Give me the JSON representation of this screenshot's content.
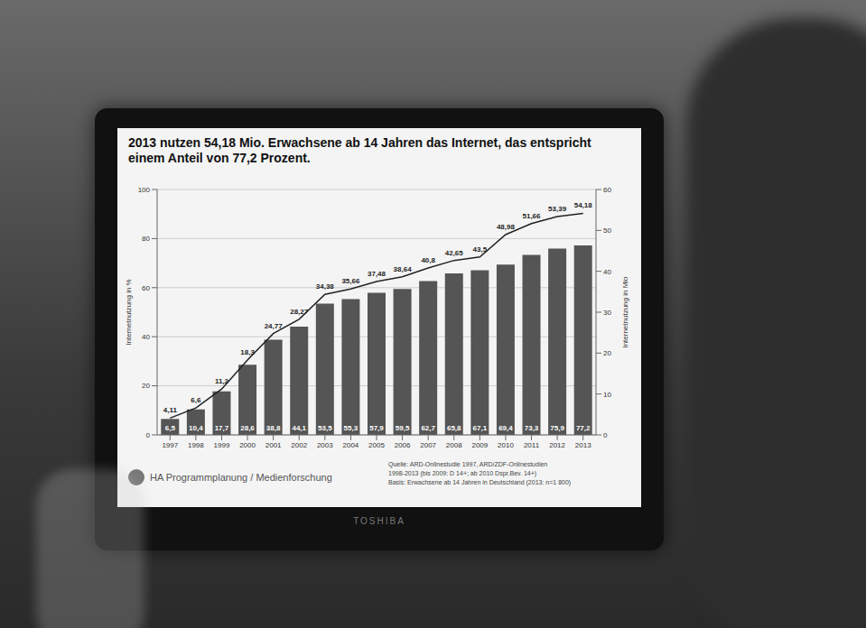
{
  "chart_data": {
    "type": "bar",
    "title": "2013 nutzen 54,18 Mio. Erwachsene ab 14 Jahren das Internet, das entspricht einem Anteil von 77,2 Prozent.",
    "categories": [
      "1997",
      "1998",
      "1999",
      "2000",
      "2001",
      "2002",
      "2003",
      "2004",
      "2005",
      "2006",
      "2007",
      "2008",
      "2009",
      "2010",
      "2011",
      "2012",
      "2013"
    ],
    "series": [
      {
        "type": "bar",
        "color": "#555555",
        "values": [
          6.5,
          10.4,
          17.7,
          28.6,
          38.8,
          44.1,
          53.5,
          55.3,
          57.9,
          59.5,
          62.7,
          65.8,
          67.1,
          69.4,
          73.3,
          75.9,
          77.2
        ],
        "value_labels": [
          "6,5",
          "10,4",
          "17,7",
          "28,6",
          "38,8",
          "44,1",
          "53,5",
          "55,3",
          "57,9",
          "59,5",
          "62,7",
          "65,8",
          "67,1",
          "69,4",
          "73,3",
          "75,9",
          "77,2"
        ]
      },
      {
        "type": "line",
        "axis": "y2",
        "color": "#222222",
        "values": [
          4.11,
          6.6,
          11.2,
          18.3,
          24.77,
          28.27,
          34.38,
          35.66,
          37.48,
          38.64,
          40.8,
          42.65,
          43.5,
          48.98,
          51.66,
          53.39,
          54.18
        ],
        "value_labels": [
          "4,11",
          "6,6",
          "11,2",
          "18,3",
          "24,77",
          "28,27",
          "34,38",
          "35,66",
          "37,48",
          "38,64",
          "40,8",
          "42,65",
          "43,5",
          "48,98",
          "51,66",
          "53,39",
          "54,18"
        ]
      }
    ],
    "y_label": "Internetnutzung in %",
    "y2_label": "Internetnutzung in Mio",
    "ylim": [
      0,
      100
    ],
    "yticks": [
      0,
      20,
      40,
      60,
      80,
      100
    ],
    "y2lim": [
      0,
      60
    ],
    "y2ticks": [
      0,
      10,
      20,
      30,
      40,
      50,
      60
    ],
    "grid": true,
    "data_labels": true,
    "annotations": [
      "HA Programmplanung / Medienforschung",
      "Quelle: ARD-Onlinestudie 1997, ARD/ZDF-Onlinestudien",
      "1998-2013 (bis 2009: D 14+; ab 2010 Dspr.Bev. 14+)",
      "Basis: Erwachsene ab 14 Jahren in Deutschland (2013: n=1 800)"
    ]
  },
  "laptop": {
    "brand": "TOSHIBA"
  }
}
